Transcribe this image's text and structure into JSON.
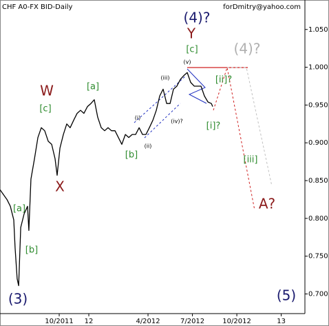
{
  "chart_data": {
    "type": "line",
    "title": "CHF A0-FX BID-Daily",
    "source": "forDmitry@yahoo.com",
    "color": "#000000",
    "x": [
      -1.0,
      -0.53,
      -0.3,
      -0.07,
      0.02,
      0.16,
      0.26,
      0.4,
      0.63,
      0.86,
      0.95,
      1.09,
      1.33,
      1.56,
      1.79,
      2.02,
      2.26,
      2.49,
      2.72,
      2.86,
      3.05,
      3.28,
      3.51,
      3.74,
      3.98,
      4.21,
      4.44,
      4.67,
      4.91,
      5.14,
      5.37,
      5.6,
      5.84,
      6.07,
      6.3,
      6.53,
      6.77,
      7.0,
      7.23,
      7.47,
      7.7,
      7.93,
      8.16,
      8.4,
      8.63,
      8.86,
      9.09,
      9.33,
      9.56,
      9.79,
      10.02,
      10.26,
      10.49,
      10.72,
      10.95,
      11.19,
      11.42,
      11.65,
      11.88,
      12.12,
      12.35,
      12.58,
      12.81,
      13.05,
      13.28,
      13.37
    ],
    "values": [
      0.838,
      0.825,
      0.816,
      0.798,
      0.761,
      0.72,
      0.711,
      0.788,
      0.806,
      0.816,
      0.784,
      0.852,
      0.879,
      0.907,
      0.92,
      0.916,
      0.902,
      0.898,
      0.879,
      0.857,
      0.893,
      0.911,
      0.925,
      0.92,
      0.93,
      0.939,
      0.943,
      0.939,
      0.948,
      0.952,
      0.957,
      0.934,
      0.92,
      0.916,
      0.92,
      0.916,
      0.916,
      0.907,
      0.898,
      0.911,
      0.907,
      0.911,
      0.911,
      0.92,
      0.911,
      0.911,
      0.92,
      0.93,
      0.943,
      0.962,
      0.971,
      0.952,
      0.952,
      0.971,
      0.975,
      0.984,
      0.989,
      0.993,
      0.98,
      0.975,
      0.975,
      0.975,
      0.962,
      0.954,
      0.952,
      0.948
    ],
    "xlim": [
      -1,
      19.6
    ],
    "xticks": [
      {
        "value": 3,
        "label": "10/2011"
      },
      {
        "value": 5,
        "label": "12"
      },
      {
        "value": 9,
        "label": "4/2012"
      },
      {
        "value": 12,
        "label": "7/2012"
      },
      {
        "value": 15,
        "label": "10/2012"
      },
      {
        "value": 18,
        "label": "13"
      }
    ],
    "ylim": [
      0.674,
      1.089
    ],
    "yticks": [
      {
        "value": 0.7,
        "label": "0.700"
      },
      {
        "value": 0.75,
        "label": "0.750"
      },
      {
        "value": 0.8,
        "label": "0.800"
      },
      {
        "value": 0.85,
        "label": "0.850"
      },
      {
        "value": 0.9,
        "label": "0.900"
      },
      {
        "value": 0.95,
        "label": "0.950"
      },
      {
        "value": 1.0,
        "label": "1.000"
      },
      {
        "value": 1.05,
        "label": "1.050"
      }
    ],
    "annotations": [
      "(3)",
      "[a]",
      "[b]",
      "W",
      "[c]",
      "X",
      "[a]",
      "[b]",
      "(i)",
      "(ii)",
      "(iii)",
      "(iv)?",
      "(v)",
      "[c]",
      "Y",
      "(4)?",
      "(4)?",
      "[ii]?",
      "[i]?",
      "[iii]",
      "A?",
      "(5)"
    ]
  }
}
